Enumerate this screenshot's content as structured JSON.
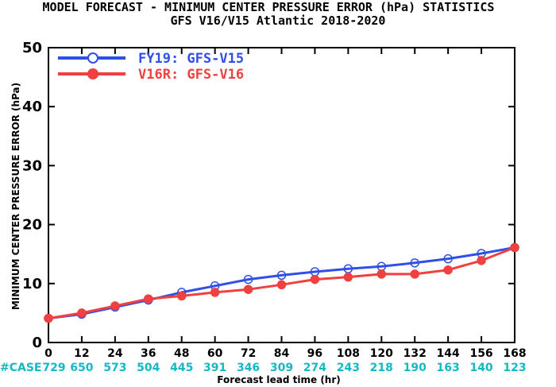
{
  "chart_data": {
    "type": "line",
    "title": "MODEL FORECAST - MINIMUM CENTER PRESSURE ERROR (hPa) STATISTICS",
    "subtitle": "GFS V16/V15 Atlantic 2018-2020",
    "xlabel": "Forecast lead time (hr)",
    "ylabel": "MINIMUM CENTER PRESSURE ERROR (hPa)",
    "x": [
      0,
      12,
      24,
      36,
      48,
      60,
      72,
      84,
      96,
      108,
      120,
      132,
      144,
      156,
      168
    ],
    "x_tick_labels": [
      "0",
      "12",
      "24",
      "36",
      "48",
      "60",
      "72",
      "84",
      "96",
      "108",
      "120",
      "132",
      "144",
      "156",
      "168"
    ],
    "xlim": [
      0,
      168
    ],
    "ylim": [
      0,
      50
    ],
    "y_ticks": [
      0,
      10,
      20,
      30,
      40,
      50
    ],
    "y_tick_labels": [
      "0",
      "10",
      "20",
      "30",
      "40",
      "50"
    ],
    "grid": false,
    "legend_position": "top-left",
    "case_label": "#CASE",
    "cases": [
      "729",
      "650",
      "573",
      "504",
      "445",
      "391",
      "346",
      "309",
      "274",
      "243",
      "218",
      "190",
      "163",
      "140",
      "123"
    ],
    "series": [
      {
        "name": "FY19: GFS-V15",
        "color": "#2f4fe8",
        "marker": "open-circle",
        "values": [
          4.1,
          4.8,
          6.0,
          7.2,
          8.5,
          9.6,
          10.7,
          11.4,
          12.0,
          12.5,
          12.9,
          13.5,
          14.2,
          15.1,
          16.1
        ]
      },
      {
        "name": "V16R: GFS-V16",
        "color": "#f0403f",
        "marker": "filled-circle",
        "values": [
          4.1,
          5.0,
          6.2,
          7.4,
          7.9,
          8.5,
          9.0,
          9.8,
          10.7,
          11.1,
          11.6,
          11.6,
          12.3,
          13.9,
          16.1
        ]
      }
    ]
  }
}
